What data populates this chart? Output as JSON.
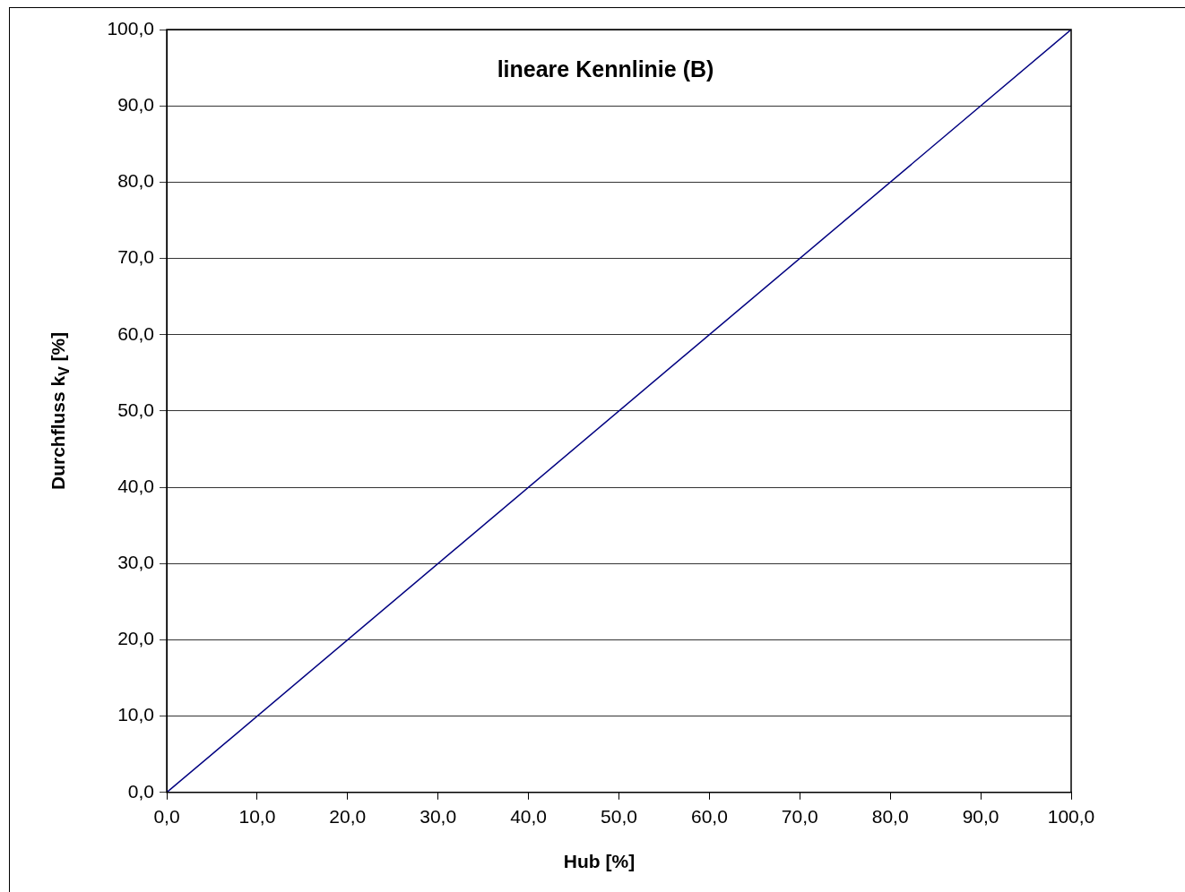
{
  "chart_data": {
    "type": "line",
    "title": "lineare Kennlinie (B)",
    "xlabel": "Hub [%]",
    "ylabel": "Durchfluss k$_{V}$ [%]",
    "x": [
      0,
      100
    ],
    "series": [
      {
        "color": "#000080",
        "values": [
          0,
          100
        ]
      }
    ],
    "xlim": [
      0,
      100
    ],
    "ylim": [
      0,
      100
    ],
    "xticks": [
      {
        "value": 0,
        "label": "0,0"
      },
      {
        "value": 10,
        "label": "10,0"
      },
      {
        "value": 20,
        "label": "20,0"
      },
      {
        "value": 30,
        "label": "30,0"
      },
      {
        "value": 40,
        "label": "40,0"
      },
      {
        "value": 50,
        "label": "50,0"
      },
      {
        "value": 60,
        "label": "60,0"
      },
      {
        "value": 70,
        "label": "70,0"
      },
      {
        "value": 80,
        "label": "80,0"
      },
      {
        "value": 90,
        "label": "90,0"
      },
      {
        "value": 100,
        "label": "100,0"
      }
    ],
    "yticks": [
      {
        "value": 0,
        "label": "0,0"
      },
      {
        "value": 10,
        "label": "10,0"
      },
      {
        "value": 20,
        "label": "20,0"
      },
      {
        "value": 30,
        "label": "30,0"
      },
      {
        "value": 40,
        "label": "40,0"
      },
      {
        "value": 50,
        "label": "50,0"
      },
      {
        "value": 60,
        "label": "60,0"
      },
      {
        "value": 70,
        "label": "70,0"
      },
      {
        "value": 80,
        "label": "80,0"
      },
      {
        "value": 90,
        "label": "90,0"
      },
      {
        "value": 100,
        "label": "100,0"
      }
    ],
    "grid": "y",
    "legend": false,
    "marker": "none",
    "line_style": "solid"
  }
}
